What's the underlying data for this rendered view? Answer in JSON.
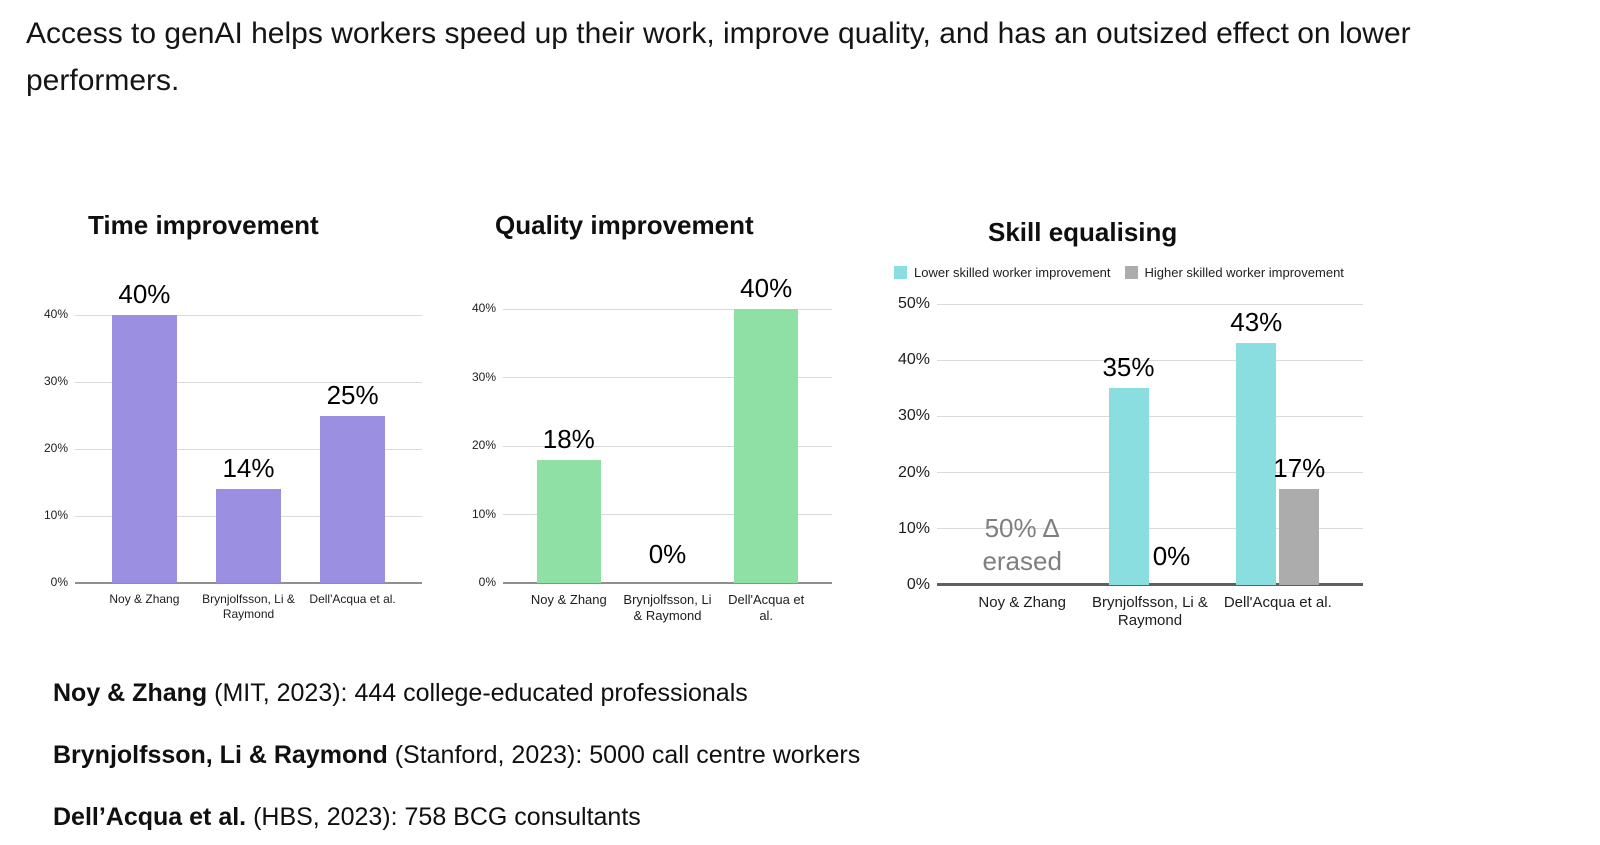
{
  "header": {
    "title": "Access to genAI helps workers speed up their work, improve quality, and has an outsized effect on lower performers."
  },
  "chart_data": [
    {
      "type": "bar",
      "title": "Time improvement",
      "categories": [
        "Noy & Zhang",
        "Brynjolfsson, Li & Raymond",
        "Dell'Acqua et al."
      ],
      "values": [
        40,
        14,
        25
      ],
      "data_labels": [
        "40%",
        "14%",
        "25%"
      ],
      "yticks": [
        "0%",
        "10%",
        "20%",
        "30%",
        "40%"
      ],
      "ylim": [
        0,
        40
      ],
      "bar_color": "#9b8fe2",
      "grid": true,
      "legend": null
    },
    {
      "type": "bar",
      "title": "Quality improvement",
      "categories": [
        "Noy & Zhang",
        "Brynjolfsson, Li & Raymond",
        "Dell'Acqua et al."
      ],
      "values": [
        18,
        0,
        40
      ],
      "data_labels": [
        "18%",
        "0%",
        "40%"
      ],
      "yticks": [
        "0%",
        "10%",
        "20%",
        "30%",
        "40%"
      ],
      "ylim": [
        0,
        40
      ],
      "bar_color": "#8fe0a5",
      "grid": true,
      "legend": null
    },
    {
      "type": "bar",
      "title": "Skill equalising",
      "categories": [
        "Noy & Zhang",
        "Brynjolfsson, Li & Raymond",
        "Dell'Acqua et al."
      ],
      "series": [
        {
          "name": "Lower skilled worker improvement",
          "color": "#8bdee0",
          "values": [
            null,
            35,
            43
          ],
          "data_labels": [
            "",
            "35%",
            "43%"
          ]
        },
        {
          "name": "Higher skilled worker improvement",
          "color": "#acacac",
          "values": [
            null,
            0,
            17
          ],
          "data_labels": [
            "",
            "0%",
            "17%"
          ]
        }
      ],
      "annotation": {
        "category_index": 0,
        "lines": [
          "50% Δ",
          "erased"
        ],
        "color": "#7f7f7f"
      },
      "yticks": [
        "0%",
        "10%",
        "20%",
        "30%",
        "40%",
        "50%"
      ],
      "ylim": [
        0,
        50
      ],
      "grid": true,
      "legend_position": "top"
    }
  ],
  "footnotes": [
    {
      "bold": "Noy & Zhang",
      "rest": " (MIT, 2023): 444 college-educated professionals"
    },
    {
      "bold": "Brynjolfsson, Li & Raymond",
      "rest": " (Stanford, 2023): 5000 call centre workers"
    },
    {
      "bold": "Dell’Acqua et al.",
      "rest": " (HBS, 2023): 758 BCG consultants"
    }
  ]
}
